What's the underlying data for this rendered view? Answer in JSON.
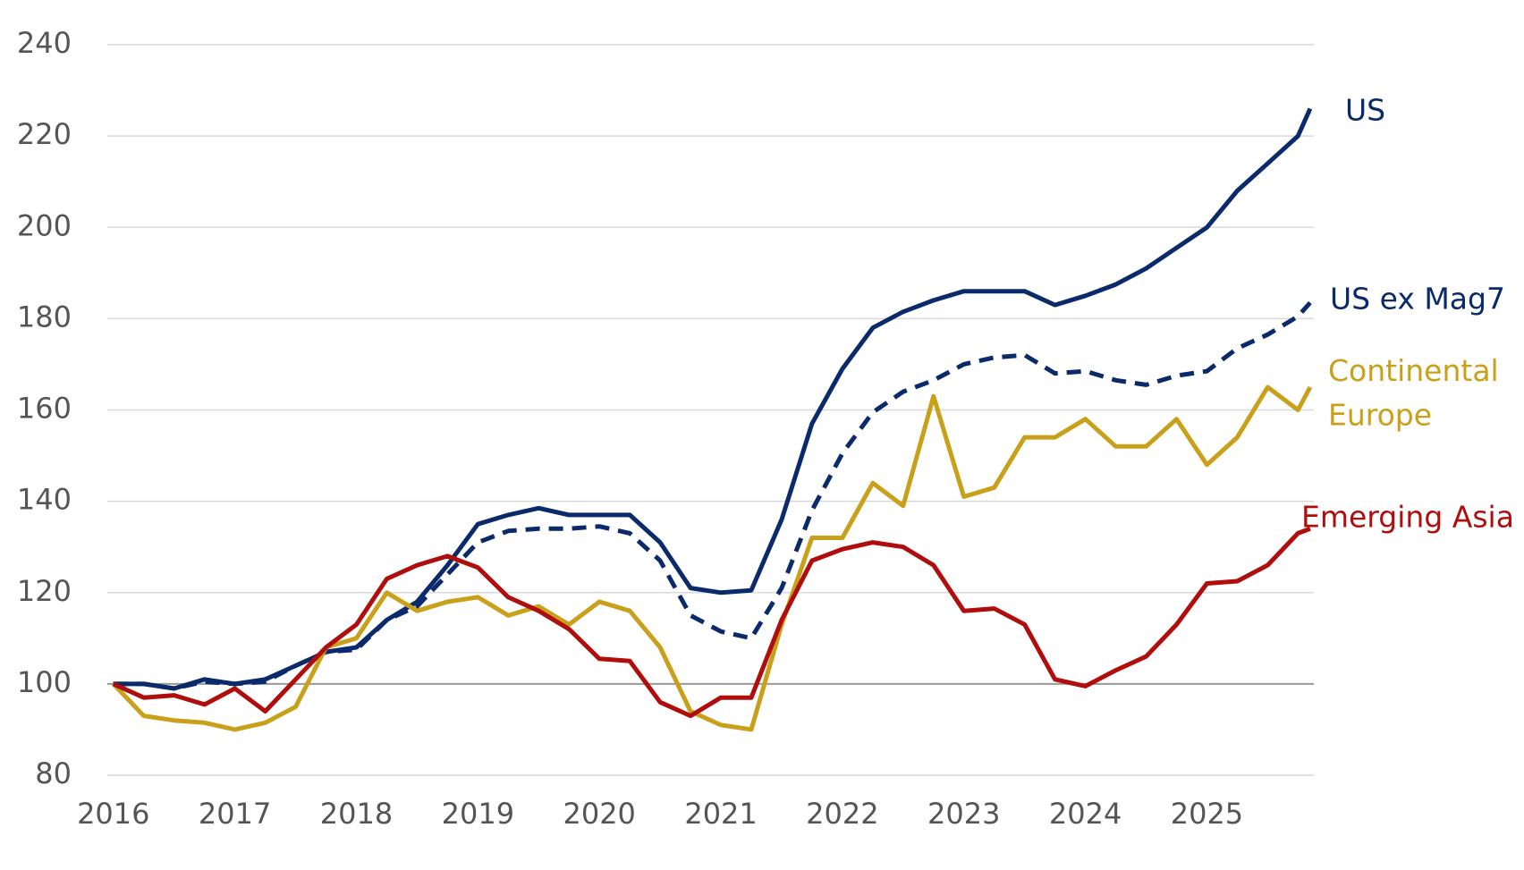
{
  "chart_data": {
    "type": "line",
    "x": [
      2016,
      2016.25,
      2016.5,
      2016.75,
      2017,
      2017.25,
      2017.5,
      2017.75,
      2018,
      2018.25,
      2018.5,
      2018.75,
      2019,
      2019.25,
      2019.5,
      2019.75,
      2020,
      2020.25,
      2020.5,
      2020.75,
      2021,
      2021.25,
      2021.5,
      2021.75,
      2022,
      2022.25,
      2022.5,
      2022.75,
      2023,
      2023.25,
      2023.5,
      2023.75,
      2024,
      2024.25,
      2024.5,
      2024.75,
      2025,
      2025.25,
      2025.5,
      2025.75,
      2025.85
    ],
    "series": [
      {
        "name": "US",
        "color": "#0b2a6b",
        "dash": false,
        "values": [
          100,
          100,
          99,
          101,
          100,
          101,
          104,
          107,
          108,
          114,
          118,
          126,
          135,
          137,
          138.5,
          137,
          137,
          137,
          131,
          121,
          120,
          120.5,
          136,
          157,
          169,
          178,
          181.5,
          184,
          186,
          186,
          186,
          183,
          185,
          187.5,
          191,
          195.5,
          200,
          208,
          214,
          220,
          226
        ]
      },
      {
        "name": "US ex Mag7",
        "color": "#0b2a6b",
        "dash": true,
        "values": [
          100,
          100,
          99,
          100.5,
          100,
          100.5,
          104,
          107,
          107.5,
          114,
          117,
          124,
          131,
          133.5,
          134,
          134,
          134.5,
          133,
          127,
          115,
          111.5,
          110,
          121,
          138,
          150.5,
          159.5,
          164,
          166.5,
          170,
          171.5,
          172,
          168,
          168.5,
          166.5,
          165.5,
          167.5,
          168.5,
          173.5,
          176.5,
          180.5,
          183.5
        ]
      },
      {
        "name": "Continental Europe",
        "color": "#c9a019",
        "dash": false,
        "values": [
          100,
          93,
          92,
          91.5,
          90,
          91.5,
          95,
          108,
          110,
          120,
          116,
          118,
          119,
          115,
          117,
          113,
          118,
          116,
          108,
          94,
          91,
          90,
          113,
          132,
          132,
          144,
          139,
          163,
          141,
          143,
          154,
          154,
          158,
          152,
          152,
          158,
          148,
          154,
          165,
          160,
          165
        ]
      },
      {
        "name": "Emerging Asia",
        "color": "#b00d0d",
        "dash": false,
        "values": [
          100,
          97,
          97.5,
          95.5,
          99,
          94,
          101,
          108,
          113,
          123,
          126,
          128,
          125.5,
          119,
          116,
          112,
          105.5,
          105,
          96,
          93,
          97,
          97,
          114,
          127,
          129.5,
          131,
          130,
          126,
          116,
          116.5,
          113,
          101,
          99.5,
          103,
          106,
          113,
          122,
          122.5,
          126,
          133,
          134
        ]
      }
    ],
    "xlim": [
      2015.95,
      2025.88
    ],
    "xticks": [
      2016,
      2017,
      2018,
      2019,
      2020,
      2021,
      2022,
      2023,
      2024,
      2025
    ],
    "ylim": [
      80,
      240
    ],
    "yticks": [
      80,
      100,
      120,
      140,
      160,
      180,
      200,
      220,
      240
    ],
    "grid": true,
    "reference_line": 100
  }
}
